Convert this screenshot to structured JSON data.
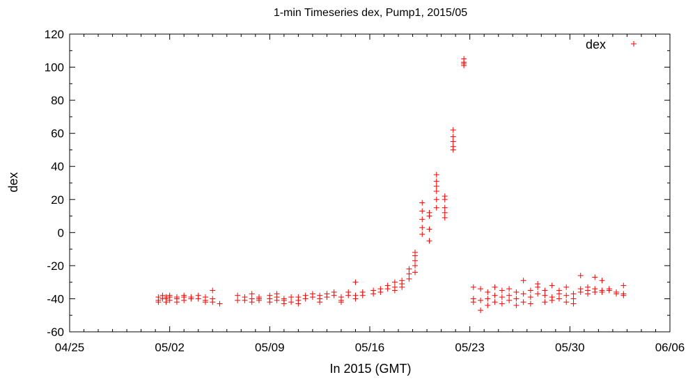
{
  "chart_data": {
    "type": "scatter",
    "title": "1-min Timeseries dex, Pump1, 2015/05",
    "xlabel": "In 2015 (GMT)",
    "ylabel": "dex",
    "x_unit": "date",
    "xlim": [
      "2015-04-25",
      "2015-06-06"
    ],
    "ylim": [
      -60,
      120
    ],
    "x_ticks": [
      "04/25",
      "05/02",
      "05/09",
      "05/16",
      "05/23",
      "05/30",
      "06/06"
    ],
    "y_ticks": [
      "-60",
      "-40",
      "-20",
      "0",
      "20",
      "40",
      "60",
      "80",
      "100",
      "120"
    ],
    "grid": false,
    "legend": {
      "position": "top-right",
      "entries": [
        "dex"
      ]
    },
    "series": [
      {
        "name": "dex",
        "color": "#ff0000",
        "marker": "plus",
        "points": [
          [
            "2015-05-01T05:00",
            -41
          ],
          [
            "2015-05-01T05:00",
            -39
          ],
          [
            "2015-05-01T05:00",
            -42
          ],
          [
            "2015-05-01T12:00",
            -40
          ],
          [
            "2015-05-01T12:00",
            -38
          ],
          [
            "2015-05-01T18:00",
            -40
          ],
          [
            "2015-05-01T18:00",
            -42
          ],
          [
            "2015-05-01T18:00",
            -39
          ],
          [
            "2015-05-02T00:00",
            -39
          ],
          [
            "2015-05-02T00:00",
            -38
          ],
          [
            "2015-05-02T00:00",
            -41
          ],
          [
            "2015-05-02T12:00",
            -40
          ],
          [
            "2015-05-02T12:00",
            -39
          ],
          [
            "2015-05-02T12:00",
            -42
          ],
          [
            "2015-05-03T00:00",
            -39
          ],
          [
            "2015-05-03T00:00",
            -38
          ],
          [
            "2015-05-03T00:00",
            -41
          ],
          [
            "2015-05-03T12:00",
            -40
          ],
          [
            "2015-05-03T12:00",
            -39
          ],
          [
            "2015-05-04T00:00",
            -38
          ],
          [
            "2015-05-04T00:00",
            -40
          ],
          [
            "2015-05-04T12:00",
            -41
          ],
          [
            "2015-05-04T12:00",
            -39
          ],
          [
            "2015-05-04T12:00",
            -42
          ],
          [
            "2015-05-05T00:00",
            -40
          ],
          [
            "2015-05-05T00:00",
            -42
          ],
          [
            "2015-05-05T00:00",
            -35
          ],
          [
            "2015-05-05T12:00",
            -43
          ],
          [
            "2015-05-06T18:00",
            -38
          ],
          [
            "2015-05-06T18:00",
            -41
          ],
          [
            "2015-05-07T06:00",
            -41
          ],
          [
            "2015-05-07T06:00",
            -39
          ],
          [
            "2015-05-07T18:00",
            -37
          ],
          [
            "2015-05-07T18:00",
            -40
          ],
          [
            "2015-05-07T18:00",
            -42
          ],
          [
            "2015-05-08T06:00",
            -40
          ],
          [
            "2015-05-08T06:00",
            -39
          ],
          [
            "2015-05-08T06:00",
            -41
          ],
          [
            "2015-05-09T00:00",
            -38
          ],
          [
            "2015-05-09T00:00",
            -40
          ],
          [
            "2015-05-09T00:00",
            -42
          ],
          [
            "2015-05-09T12:00",
            -37
          ],
          [
            "2015-05-09T12:00",
            -39
          ],
          [
            "2015-05-09T12:00",
            -41
          ],
          [
            "2015-05-10T00:00",
            -40
          ],
          [
            "2015-05-10T00:00",
            -43
          ],
          [
            "2015-05-10T00:00",
            -41
          ],
          [
            "2015-05-10T12:00",
            -39
          ],
          [
            "2015-05-10T12:00",
            -42
          ],
          [
            "2015-05-11T00:00",
            -41
          ],
          [
            "2015-05-11T00:00",
            -39
          ],
          [
            "2015-05-11T00:00",
            -43
          ],
          [
            "2015-05-11T12:00",
            -38
          ],
          [
            "2015-05-11T12:00",
            -40
          ],
          [
            "2015-05-12T00:00",
            -37
          ],
          [
            "2015-05-12T00:00",
            -39
          ],
          [
            "2015-05-12T12:00",
            -38
          ],
          [
            "2015-05-12T12:00",
            -40
          ],
          [
            "2015-05-12T12:00",
            -42
          ],
          [
            "2015-05-13T00:00",
            -39
          ],
          [
            "2015-05-13T00:00",
            -37
          ],
          [
            "2015-05-13T12:00",
            -38
          ],
          [
            "2015-05-13T12:00",
            -36
          ],
          [
            "2015-05-14T00:00",
            -39
          ],
          [
            "2015-05-14T00:00",
            -41
          ],
          [
            "2015-05-14T00:00",
            -42
          ],
          [
            "2015-05-14T12:00",
            -38
          ],
          [
            "2015-05-14T12:00",
            -36
          ],
          [
            "2015-05-15T00:00",
            -40
          ],
          [
            "2015-05-15T00:00",
            -38
          ],
          [
            "2015-05-15T00:00",
            -30
          ],
          [
            "2015-05-15T12:00",
            -38
          ],
          [
            "2015-05-15T12:00",
            -36
          ],
          [
            "2015-05-16T06:00",
            -37
          ],
          [
            "2015-05-16T06:00",
            -35
          ],
          [
            "2015-05-16T18:00",
            -36
          ],
          [
            "2015-05-16T18:00",
            -34
          ],
          [
            "2015-05-17T06:00",
            -34
          ],
          [
            "2015-05-17T06:00",
            -32
          ],
          [
            "2015-05-17T18:00",
            -33
          ],
          [
            "2015-05-17T18:00",
            -30
          ],
          [
            "2015-05-17T18:00",
            -35
          ],
          [
            "2015-05-18T06:00",
            -31
          ],
          [
            "2015-05-18T06:00",
            -29
          ],
          [
            "2015-05-18T06:00",
            -33
          ],
          [
            "2015-05-18T18:00",
            -28
          ],
          [
            "2015-05-18T18:00",
            -25
          ],
          [
            "2015-05-18T18:00",
            -22
          ],
          [
            "2015-05-19T04:00",
            -20
          ],
          [
            "2015-05-19T04:00",
            -17
          ],
          [
            "2015-05-19T04:00",
            -14
          ],
          [
            "2015-05-19T04:00",
            -24
          ],
          [
            "2015-05-19T04:00",
            -12
          ],
          [
            "2015-05-19T16:00",
            13
          ],
          [
            "2015-05-19T16:00",
            18
          ],
          [
            "2015-05-19T16:00",
            3
          ],
          [
            "2015-05-19T16:00",
            -1
          ],
          [
            "2015-05-19T16:00",
            8
          ],
          [
            "2015-05-20T04:00",
            10
          ],
          [
            "2015-05-20T04:00",
            12
          ],
          [
            "2015-05-20T04:00",
            -5
          ],
          [
            "2015-05-20T04:00",
            2
          ],
          [
            "2015-05-20T16:00",
            31
          ],
          [
            "2015-05-20T16:00",
            35
          ],
          [
            "2015-05-20T16:00",
            25
          ],
          [
            "2015-05-20T16:00",
            20
          ],
          [
            "2015-05-20T16:00",
            28
          ],
          [
            "2015-05-20T16:00",
            15
          ],
          [
            "2015-05-21T06:00",
            22
          ],
          [
            "2015-05-21T06:00",
            20
          ],
          [
            "2015-05-21T06:00",
            15
          ],
          [
            "2015-05-21T06:00",
            12
          ],
          [
            "2015-05-21T06:00",
            9
          ],
          [
            "2015-05-21T20:00",
            62
          ],
          [
            "2015-05-21T20:00",
            58
          ],
          [
            "2015-05-21T20:00",
            55
          ],
          [
            "2015-05-21T20:00",
            52
          ],
          [
            "2015-05-21T20:00",
            50
          ],
          [
            "2015-05-22T14:00",
            103
          ],
          [
            "2015-05-22T14:00",
            101
          ],
          [
            "2015-05-22T14:00",
            105
          ],
          [
            "2015-05-22T14:00",
            102
          ],
          [
            "2015-05-23T06:00",
            -40
          ],
          [
            "2015-05-23T06:00",
            -33
          ],
          [
            "2015-05-23T06:00",
            -42
          ],
          [
            "2015-05-23T18:00",
            -41
          ],
          [
            "2015-05-23T18:00",
            -34
          ],
          [
            "2015-05-23T18:00",
            -47
          ],
          [
            "2015-05-24T06:00",
            -40
          ],
          [
            "2015-05-24T06:00",
            -36
          ],
          [
            "2015-05-24T06:00",
            -44
          ],
          [
            "2015-05-24T18:00",
            -42
          ],
          [
            "2015-05-24T18:00",
            -38
          ],
          [
            "2015-05-24T18:00",
            -33
          ],
          [
            "2015-05-25T06:00",
            -39
          ],
          [
            "2015-05-25T06:00",
            -35
          ],
          [
            "2015-05-25T06:00",
            -43
          ],
          [
            "2015-05-25T18:00",
            -38
          ],
          [
            "2015-05-25T18:00",
            -41
          ],
          [
            "2015-05-25T18:00",
            -34
          ],
          [
            "2015-05-26T06:00",
            -40
          ],
          [
            "2015-05-26T06:00",
            -36
          ],
          [
            "2015-05-26T06:00",
            -44
          ],
          [
            "2015-05-26T18:00",
            -37
          ],
          [
            "2015-05-26T18:00",
            -29
          ],
          [
            "2015-05-26T18:00",
            -42
          ],
          [
            "2015-05-27T06:00",
            -39
          ],
          [
            "2015-05-27T06:00",
            -35
          ],
          [
            "2015-05-27T06:00",
            -43
          ],
          [
            "2015-05-27T18:00",
            -33
          ],
          [
            "2015-05-27T18:00",
            -31
          ],
          [
            "2015-05-27T18:00",
            -37
          ],
          [
            "2015-05-28T06:00",
            -38
          ],
          [
            "2015-05-28T06:00",
            -35
          ],
          [
            "2015-05-28T06:00",
            -42
          ],
          [
            "2015-05-28T18:00",
            -39
          ],
          [
            "2015-05-28T18:00",
            -32
          ],
          [
            "2015-05-28T18:00",
            -41
          ],
          [
            "2015-05-29T06:00",
            -37
          ],
          [
            "2015-05-29T06:00",
            -35
          ],
          [
            "2015-05-29T06:00",
            -40
          ],
          [
            "2015-05-29T18:00",
            -38
          ],
          [
            "2015-05-29T18:00",
            -33
          ],
          [
            "2015-05-29T18:00",
            -42
          ],
          [
            "2015-05-30T06:00",
            -40
          ],
          [
            "2015-05-30T06:00",
            -37
          ],
          [
            "2015-05-30T06:00",
            -43
          ],
          [
            "2015-05-30T18:00",
            -36
          ],
          [
            "2015-05-30T18:00",
            -34
          ],
          [
            "2015-05-30T18:00",
            -26
          ],
          [
            "2015-05-31T06:00",
            -35
          ],
          [
            "2015-05-31T06:00",
            -33
          ],
          [
            "2015-05-31T06:00",
            -37
          ],
          [
            "2015-05-31T18:00",
            -36
          ],
          [
            "2015-05-31T18:00",
            -34
          ],
          [
            "2015-05-31T18:00",
            -27
          ],
          [
            "2015-06-01T06:00",
            -35
          ],
          [
            "2015-06-01T06:00",
            -29
          ],
          [
            "2015-06-01T06:00",
            -36
          ],
          [
            "2015-06-01T18:00",
            -35
          ],
          [
            "2015-06-01T18:00",
            -34
          ],
          [
            "2015-06-02T06:00",
            -37
          ],
          [
            "2015-06-02T06:00",
            -36
          ],
          [
            "2015-06-02T18:00",
            -38
          ],
          [
            "2015-06-02T18:00",
            -37
          ],
          [
            "2015-06-02T18:00",
            -32
          ]
        ]
      }
    ]
  }
}
